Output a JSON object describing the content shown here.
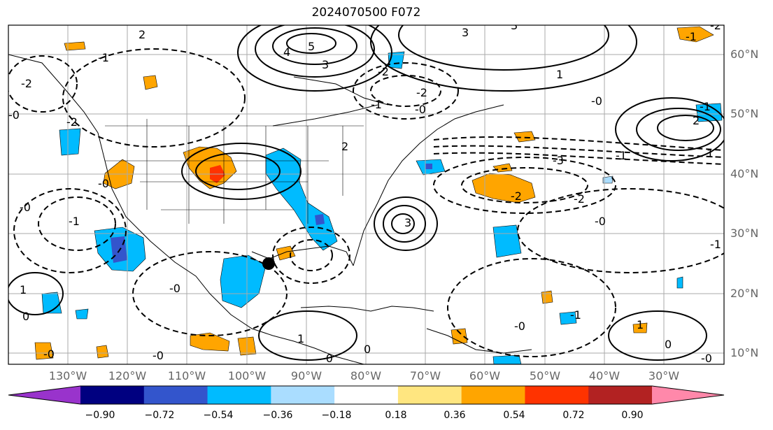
{
  "title": "2024070500 F072",
  "lat_labels": [
    "60°N",
    "50°N",
    "40°N",
    "30°N",
    "20°N",
    "10°N"
  ],
  "lon_labels": [
    "130°W",
    "120°W",
    "110°W",
    "100°W",
    "90°W",
    "80°W",
    "70°W",
    "60°W",
    "50°W",
    "40°W",
    "30°W"
  ],
  "colorbar": {
    "ticks": [
      "−0.90",
      "−0.72",
      "−0.54",
      "−0.36",
      "−0.18",
      "0.18",
      "0.36",
      "0.54",
      "0.72",
      "0.90"
    ],
    "colors": [
      "#9933cc",
      "#000080",
      "#3355cc",
      "#00bbff",
      "#aaddff",
      "#ffffff",
      "#ffe680",
      "#ffa500",
      "#ff3300",
      "#b22222",
      "#ff88aa"
    ]
  },
  "contour_labels": [
    "5",
    "4",
    "3",
    "3",
    "3",
    "1",
    "-2",
    "-2",
    "-1",
    "-0",
    "-0",
    "-3",
    "-2",
    "-2",
    "-1",
    "-2",
    "-1",
    "-1",
    "-0",
    "-0",
    "-0",
    "-0",
    "-1",
    "-1",
    "-2",
    "-0",
    "-1",
    "1",
    "-0",
    "-0",
    "1",
    "0",
    "-0",
    "0",
    "2",
    "2",
    "1",
    "-1",
    "-2",
    "3",
    "1",
    "2",
    "-0",
    "0",
    "-0"
  ],
  "marker": {
    "type": "dot",
    "lat": 25.5,
    "lon": -96.5
  }
}
